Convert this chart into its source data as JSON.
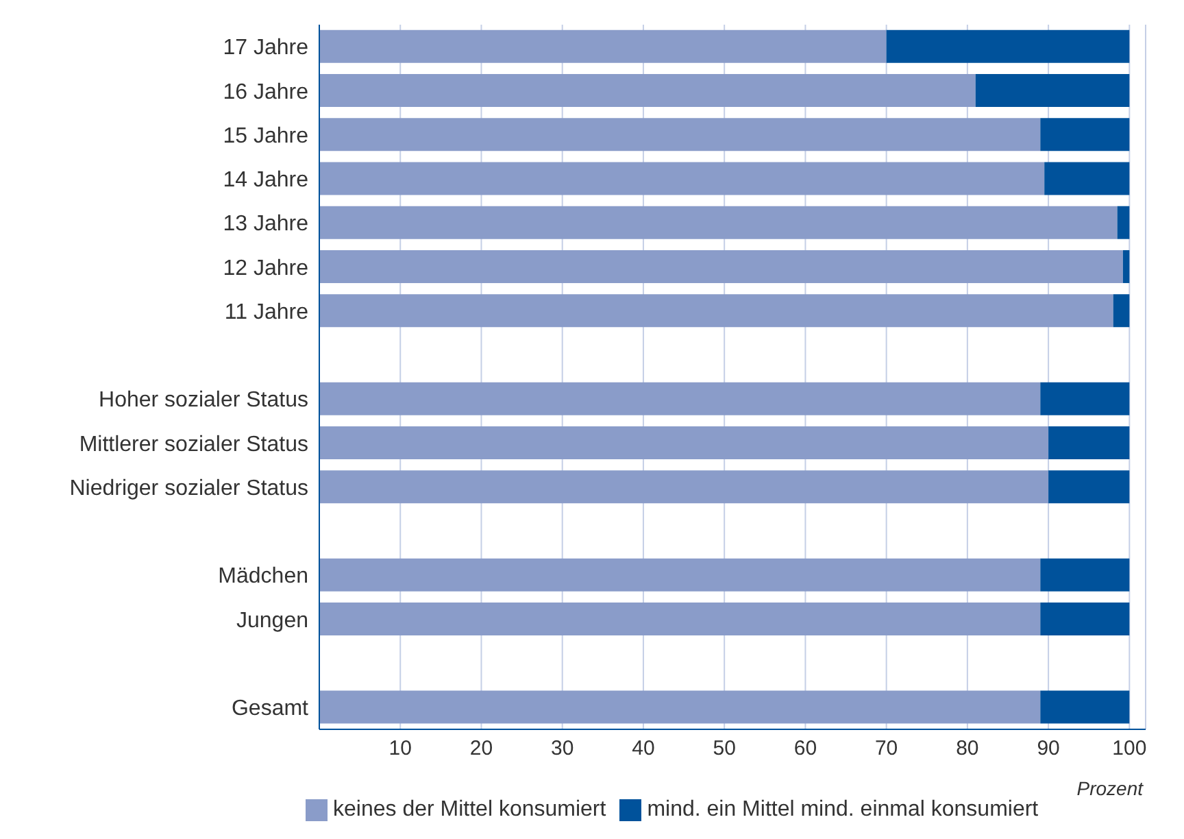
{
  "chart_data": {
    "type": "bar",
    "orientation": "horizontal",
    "stacked": true,
    "categories": [
      "17 Jahre",
      "16 Jahre",
      "15 Jahre",
      "14 Jahre",
      "13 Jahre",
      "12 Jahre",
      "11 Jahre",
      null,
      "Hoher sozialer Status",
      "Mittlerer sozialer Status",
      "Niedriger sozialer Status",
      null,
      "Mädchen",
      "Jungen",
      null,
      "Gesamt"
    ],
    "series": [
      {
        "name": "keines der Mittel konsumiert",
        "color": "#8a9cc9",
        "values": [
          70,
          81,
          89,
          89.5,
          98.5,
          99.2,
          98,
          null,
          89,
          90,
          90,
          null,
          89,
          89,
          null,
          89
        ]
      },
      {
        "name": "mind. ein Mittel mind. einmal konsumiert",
        "color": "#00529b",
        "values": [
          30,
          19,
          11,
          10.5,
          1.5,
          0.8,
          2,
          null,
          11,
          10,
          10,
          null,
          11,
          11,
          null,
          11
        ]
      }
    ],
    "xlabel": "Prozent",
    "xlim": [
      0,
      102
    ],
    "xticks": [
      {
        "value": 0,
        "label": null
      },
      10,
      20,
      30,
      40,
      50,
      60,
      70,
      80,
      90,
      100
    ],
    "grid": "x",
    "legend": "bottom"
  }
}
